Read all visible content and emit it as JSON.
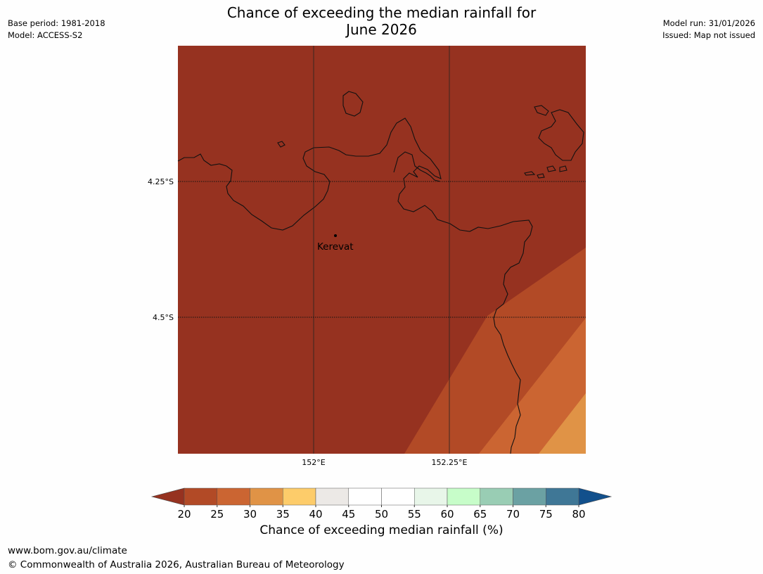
{
  "header": {
    "title_line1": "Chance of exceeding the median rainfall for",
    "title_line2": "June 2026",
    "base_period": "Base period: 1981-2018",
    "model": "Model: ACCESS-S2",
    "model_run": "Model run: 31/01/2026",
    "issued": "Issued: Map not issued"
  },
  "map": {
    "place_label": "Kerevat",
    "lat_labels": [
      "4.25°S",
      "4.5°S"
    ],
    "lon_labels": [
      "152°E",
      "152.25°E"
    ]
  },
  "colorbar": {
    "label": "Chance of exceeding median rainfall (%)",
    "ticks": [
      "20",
      "25",
      "30",
      "35",
      "40",
      "45",
      "50",
      "55",
      "60",
      "65",
      "70",
      "75",
      "80"
    ],
    "below_color": "#963220",
    "above_color": "#12508c",
    "colors": [
      "#b24a26",
      "#cb6532",
      "#e09346",
      "#fdcc6a",
      "#ece9e6",
      "#ffffff",
      "#ffffff",
      "#e8f6e9",
      "#c7fdc9",
      "#99cdb4",
      "#6ba1a3",
      "#3f7796"
    ]
  },
  "map_fill_colors": {
    "land_sea_base": "#963220",
    "band_25_30": "#b24a26",
    "band_30_35": "#cb6532",
    "band_35_40": "#e09346"
  },
  "footer": {
    "url": "www.bom.gov.au/climate",
    "copyright": "© Commonwealth of Australia 2026, Australian Bureau of Meteorology"
  }
}
